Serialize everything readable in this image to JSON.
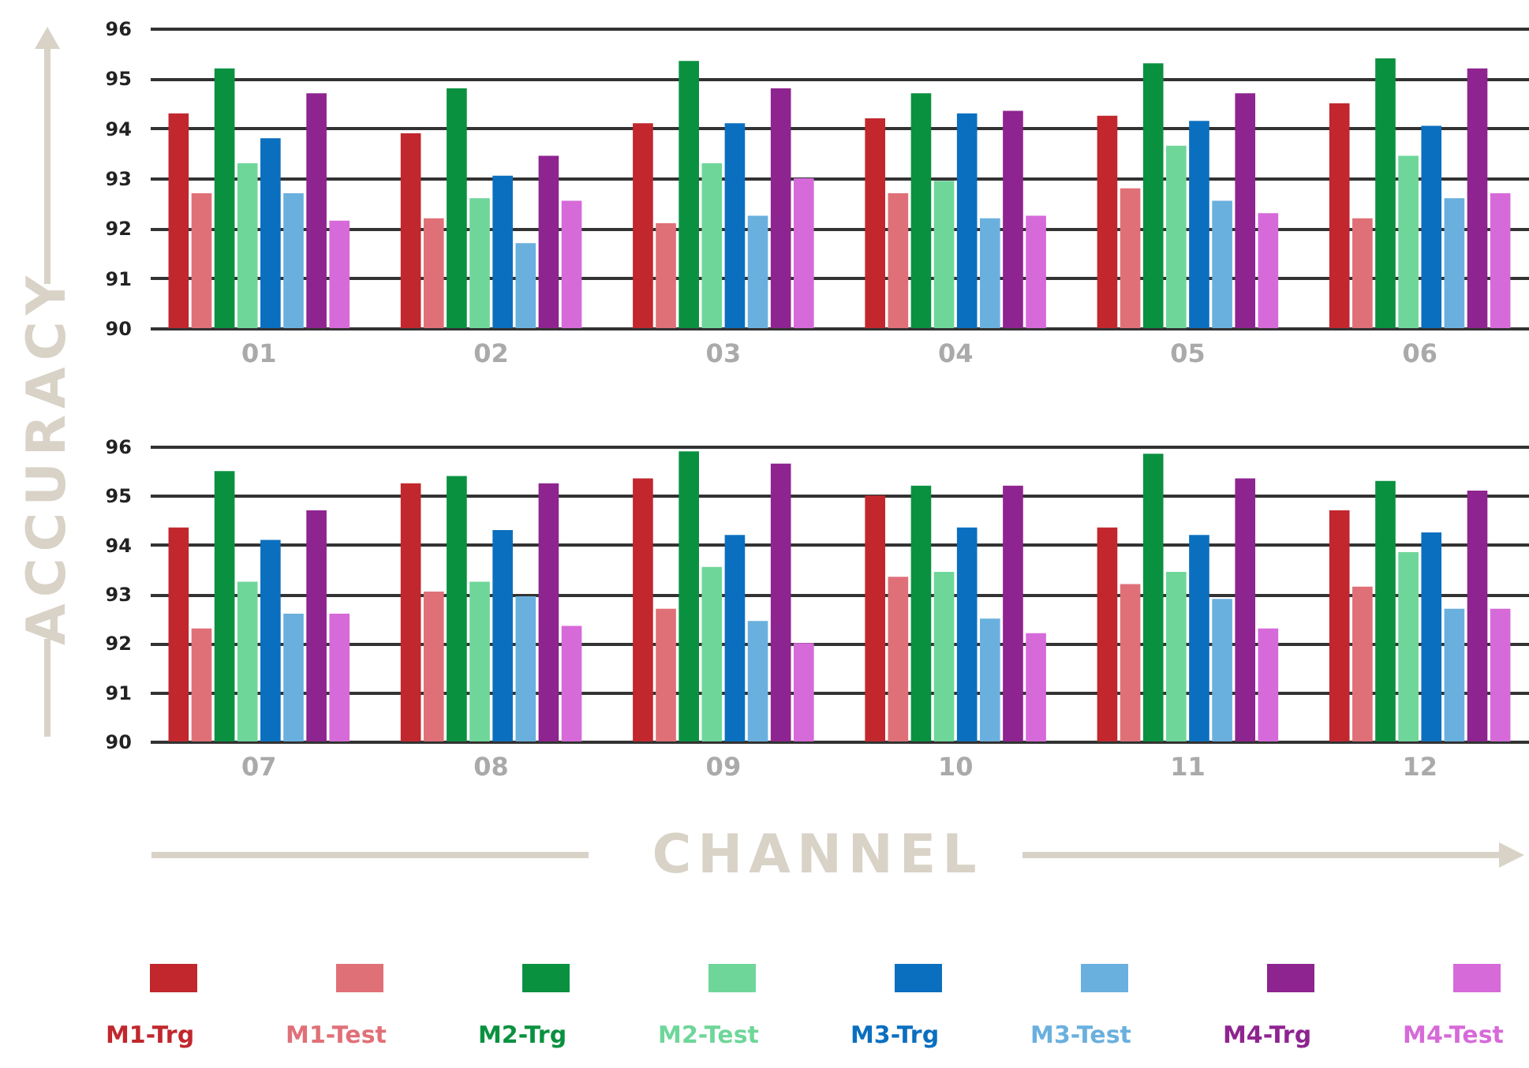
{
  "chart_data": [
    {
      "type": "bar",
      "ylabel": "ACCURACY",
      "categories": [
        "01",
        "02",
        "03",
        "04",
        "05",
        "06"
      ],
      "ylim": [
        90,
        96
      ],
      "yticks": [
        90,
        91,
        92,
        93,
        94,
        95,
        96
      ],
      "grid": "y",
      "series": [
        {
          "color": "#c1272d",
          "values": [
            94.3,
            93.9,
            94.1,
            94.2,
            94.25,
            94.5
          ]
        },
        {
          "color": "#e07078",
          "values": [
            92.7,
            92.2,
            92.1,
            92.7,
            92.8,
            92.2
          ]
        },
        {
          "color": "#0a9140",
          "values": [
            95.2,
            94.8,
            95.35,
            94.7,
            95.3,
            95.4
          ]
        },
        {
          "color": "#6fd69a",
          "values": [
            93.3,
            92.6,
            93.3,
            92.95,
            93.65,
            93.45
          ]
        },
        {
          "color": "#0b6fbf",
          "values": [
            93.8,
            93.05,
            94.1,
            94.3,
            94.15,
            94.05
          ]
        },
        {
          "color": "#6ab0de",
          "values": [
            92.7,
            91.7,
            92.25,
            92.2,
            92.55,
            92.6
          ]
        },
        {
          "color": "#8e2490",
          "values": [
            94.7,
            93.45,
            94.8,
            94.35,
            94.7,
            95.2
          ]
        },
        {
          "color": "#d66ad9",
          "values": [
            92.15,
            92.55,
            93.0,
            92.25,
            92.3,
            92.7
          ]
        }
      ]
    },
    {
      "type": "bar",
      "xlabel": "CHANNEL",
      "categories": [
        "07",
        "08",
        "09",
        "10",
        "11",
        "12"
      ],
      "ylim": [
        90,
        96
      ],
      "yticks": [
        90,
        91,
        92,
        93,
        94,
        95,
        96
      ],
      "grid": "y",
      "legend": "bottom",
      "series": [
        {
          "name": "M1-Trg",
          "color": "#c1272d",
          "values": [
            94.35,
            95.25,
            95.35,
            95.0,
            94.35,
            94.7
          ]
        },
        {
          "name": "M1-Test",
          "color": "#e07078",
          "values": [
            92.3,
            93.05,
            92.7,
            93.35,
            93.2,
            93.15
          ]
        },
        {
          "name": "M2-Trg",
          "color": "#0a9140",
          "values": [
            95.5,
            95.4,
            95.9,
            95.2,
            95.85,
            95.3
          ]
        },
        {
          "name": "M2-Test",
          "color": "#6fd69a",
          "values": [
            93.25,
            93.25,
            93.55,
            93.45,
            93.45,
            93.85
          ]
        },
        {
          "name": "M3-Trg",
          "color": "#0b6fbf",
          "values": [
            94.1,
            94.3,
            94.2,
            94.35,
            94.2,
            94.25
          ]
        },
        {
          "name": "M3-Test",
          "color": "#6ab0de",
          "values": [
            92.6,
            92.95,
            92.45,
            92.5,
            92.9,
            92.7
          ]
        },
        {
          "name": "M4-Trg",
          "color": "#8e2490",
          "values": [
            94.7,
            95.25,
            95.65,
            95.2,
            95.35,
            95.1
          ]
        },
        {
          "name": "M4-Test",
          "color": "#d66ad9",
          "values": [
            92.6,
            92.35,
            92.0,
            92.2,
            92.3,
            92.7
          ]
        }
      ]
    }
  ]
}
